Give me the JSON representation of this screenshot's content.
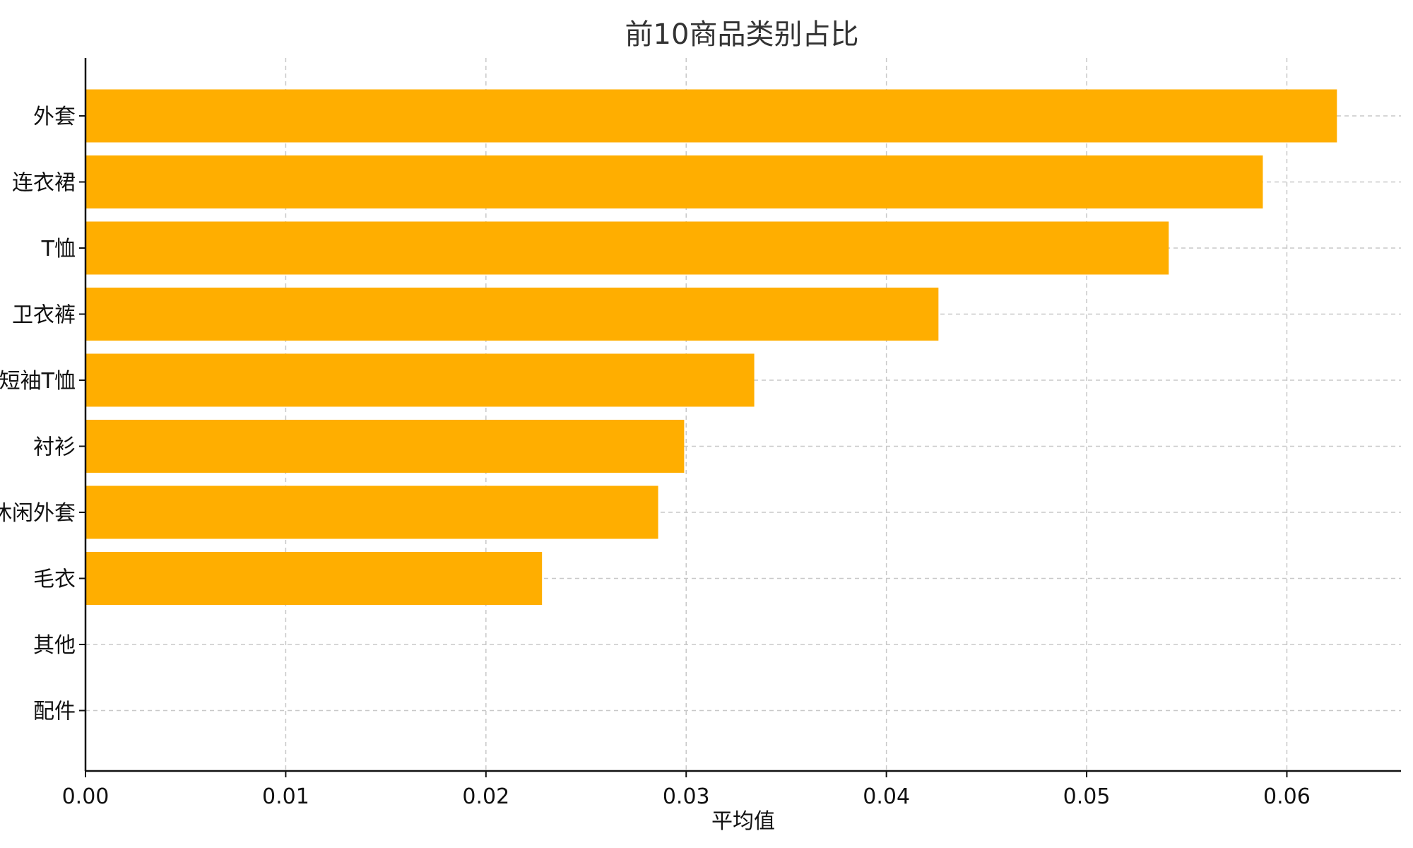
{
  "chart_data": {
    "type": "bar",
    "orientation": "horizontal",
    "title": "前10商品类别占比",
    "xlabel": "平均值",
    "ylabel": "",
    "categories": [
      "外套",
      "连衣裙",
      "T恤",
      "卫衣裤",
      "短袖T恤",
      "衬衫",
      "休闲外套",
      "毛衣",
      "其他",
      "配件"
    ],
    "values": [
      0.0625,
      0.0588,
      0.0541,
      0.0426,
      0.0334,
      0.0299,
      0.0286,
      0.0228,
      0,
      0
    ],
    "xlim": [
      0,
      0.0657
    ],
    "xticks": [
      "0.00",
      "0.01",
      "0.02",
      "0.03",
      "0.04",
      "0.05",
      "0.06"
    ],
    "xtick_values": [
      0,
      0.01,
      0.02,
      0.03,
      0.04,
      0.05,
      0.06
    ],
    "grid": true,
    "legend": "none",
    "bar_color": "#FFAE00"
  }
}
